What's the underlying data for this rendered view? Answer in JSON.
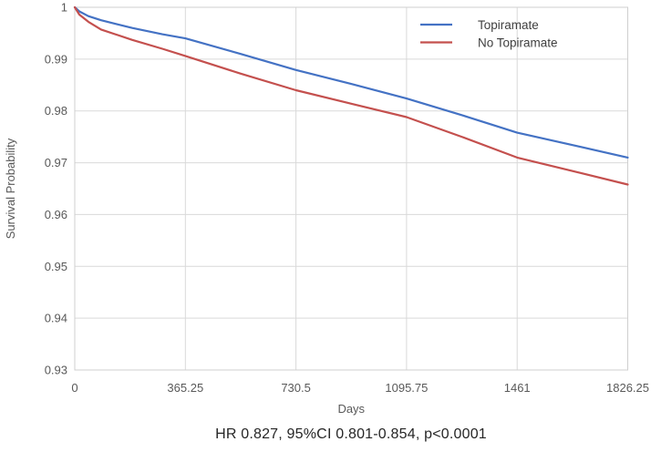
{
  "caption": "HR 0.827, 95%CI 0.801-0.854, p<0.0001",
  "colors": {
    "background": "#ffffff",
    "gridline": "#d9d9d9",
    "plot_border": "#cfcfcf",
    "tick_text": "#595959",
    "axis_title_text": "#595959",
    "legend_text": "#3f3f3f",
    "caption_text": "#262626",
    "topiramate_line": "#4472c4",
    "no_topiramate_line": "#c4504e"
  },
  "chart_data": {
    "type": "line",
    "title": "",
    "xlabel": "Days",
    "ylabel": "Survival Probability",
    "xlim": [
      0,
      1826.25
    ],
    "ylim": [
      0.93,
      1.0
    ],
    "x_ticks": [
      0,
      365.25,
      730.5,
      1095.75,
      1461,
      1826.25
    ],
    "x_tick_labels": [
      "0",
      "365.25",
      "730.5",
      "1095.75",
      "1461",
      "1826.25"
    ],
    "y_ticks": [
      1,
      0.99,
      0.98,
      0.97,
      0.96,
      0.95,
      0.94,
      0.93
    ],
    "y_tick_labels": [
      "1",
      "0.99",
      "0.98",
      "0.97",
      "0.96",
      "0.95",
      "0.94",
      "0.93"
    ],
    "grid": true,
    "plot_border": true,
    "legend_position": "top-right-inside",
    "legend_entries": [
      "Topiramate",
      "No Topiramate"
    ],
    "series": [
      {
        "name": "Topiramate",
        "color": "#4472c4",
        "x": [
          0,
          15,
          45,
          87,
          190,
          289,
          365.25,
          548,
          730.5,
          913,
          1095.75,
          1278,
          1461,
          1644,
          1826.25
        ],
        "y": [
          1.0,
          0.9992,
          0.9983,
          0.9975,
          0.996,
          0.9948,
          0.994,
          0.991,
          0.9879,
          0.9852,
          0.9824,
          0.9792,
          0.9758,
          0.9734,
          0.971
        ]
      },
      {
        "name": "No Topiramate",
        "color": "#c4504e",
        "x": [
          0,
          15,
          45,
          87,
          190,
          289,
          365.25,
          548,
          730.5,
          913,
          1095.75,
          1278,
          1461,
          1644,
          1826.25
        ],
        "y": [
          1.0,
          0.9986,
          0.9972,
          0.9957,
          0.9937,
          0.992,
          0.9906,
          0.9872,
          0.984,
          0.9814,
          0.9788,
          0.975,
          0.971,
          0.9684,
          0.9658
        ]
      }
    ]
  }
}
